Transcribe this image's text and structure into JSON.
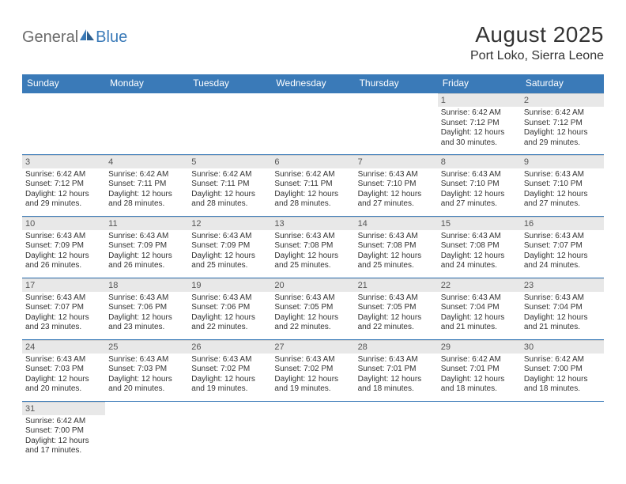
{
  "logo": {
    "text1": "General",
    "text2": "Blue",
    "color_gray": "#6b6b6b",
    "color_blue": "#3a7ab8"
  },
  "title": "August 2025",
  "location": "Port Loko, Sierra Leone",
  "header_bg": "#3a7ab8",
  "header_text_color": "#ffffff",
  "daynum_bg": "#e8e8e8",
  "row_border_color": "#3a7ab8",
  "text_color": "#333333",
  "day_headers": [
    "Sunday",
    "Monday",
    "Tuesday",
    "Wednesday",
    "Thursday",
    "Friday",
    "Saturday"
  ],
  "weeks": [
    [
      null,
      null,
      null,
      null,
      null,
      {
        "num": "1",
        "sunrise": "6:42 AM",
        "sunset": "7:12 PM",
        "daylight": "12 hours and 30 minutes."
      },
      {
        "num": "2",
        "sunrise": "6:42 AM",
        "sunset": "7:12 PM",
        "daylight": "12 hours and 29 minutes."
      }
    ],
    [
      {
        "num": "3",
        "sunrise": "6:42 AM",
        "sunset": "7:12 PM",
        "daylight": "12 hours and 29 minutes."
      },
      {
        "num": "4",
        "sunrise": "6:42 AM",
        "sunset": "7:11 PM",
        "daylight": "12 hours and 28 minutes."
      },
      {
        "num": "5",
        "sunrise": "6:42 AM",
        "sunset": "7:11 PM",
        "daylight": "12 hours and 28 minutes."
      },
      {
        "num": "6",
        "sunrise": "6:42 AM",
        "sunset": "7:11 PM",
        "daylight": "12 hours and 28 minutes."
      },
      {
        "num": "7",
        "sunrise": "6:43 AM",
        "sunset": "7:10 PM",
        "daylight": "12 hours and 27 minutes."
      },
      {
        "num": "8",
        "sunrise": "6:43 AM",
        "sunset": "7:10 PM",
        "daylight": "12 hours and 27 minutes."
      },
      {
        "num": "9",
        "sunrise": "6:43 AM",
        "sunset": "7:10 PM",
        "daylight": "12 hours and 27 minutes."
      }
    ],
    [
      {
        "num": "10",
        "sunrise": "6:43 AM",
        "sunset": "7:09 PM",
        "daylight": "12 hours and 26 minutes."
      },
      {
        "num": "11",
        "sunrise": "6:43 AM",
        "sunset": "7:09 PM",
        "daylight": "12 hours and 26 minutes."
      },
      {
        "num": "12",
        "sunrise": "6:43 AM",
        "sunset": "7:09 PM",
        "daylight": "12 hours and 25 minutes."
      },
      {
        "num": "13",
        "sunrise": "6:43 AM",
        "sunset": "7:08 PM",
        "daylight": "12 hours and 25 minutes."
      },
      {
        "num": "14",
        "sunrise": "6:43 AM",
        "sunset": "7:08 PM",
        "daylight": "12 hours and 25 minutes."
      },
      {
        "num": "15",
        "sunrise": "6:43 AM",
        "sunset": "7:08 PM",
        "daylight": "12 hours and 24 minutes."
      },
      {
        "num": "16",
        "sunrise": "6:43 AM",
        "sunset": "7:07 PM",
        "daylight": "12 hours and 24 minutes."
      }
    ],
    [
      {
        "num": "17",
        "sunrise": "6:43 AM",
        "sunset": "7:07 PM",
        "daylight": "12 hours and 23 minutes."
      },
      {
        "num": "18",
        "sunrise": "6:43 AM",
        "sunset": "7:06 PM",
        "daylight": "12 hours and 23 minutes."
      },
      {
        "num": "19",
        "sunrise": "6:43 AM",
        "sunset": "7:06 PM",
        "daylight": "12 hours and 22 minutes."
      },
      {
        "num": "20",
        "sunrise": "6:43 AM",
        "sunset": "7:05 PM",
        "daylight": "12 hours and 22 minutes."
      },
      {
        "num": "21",
        "sunrise": "6:43 AM",
        "sunset": "7:05 PM",
        "daylight": "12 hours and 22 minutes."
      },
      {
        "num": "22",
        "sunrise": "6:43 AM",
        "sunset": "7:04 PM",
        "daylight": "12 hours and 21 minutes."
      },
      {
        "num": "23",
        "sunrise": "6:43 AM",
        "sunset": "7:04 PM",
        "daylight": "12 hours and 21 minutes."
      }
    ],
    [
      {
        "num": "24",
        "sunrise": "6:43 AM",
        "sunset": "7:03 PM",
        "daylight": "12 hours and 20 minutes."
      },
      {
        "num": "25",
        "sunrise": "6:43 AM",
        "sunset": "7:03 PM",
        "daylight": "12 hours and 20 minutes."
      },
      {
        "num": "26",
        "sunrise": "6:43 AM",
        "sunset": "7:02 PM",
        "daylight": "12 hours and 19 minutes."
      },
      {
        "num": "27",
        "sunrise": "6:43 AM",
        "sunset": "7:02 PM",
        "daylight": "12 hours and 19 minutes."
      },
      {
        "num": "28",
        "sunrise": "6:43 AM",
        "sunset": "7:01 PM",
        "daylight": "12 hours and 18 minutes."
      },
      {
        "num": "29",
        "sunrise": "6:42 AM",
        "sunset": "7:01 PM",
        "daylight": "12 hours and 18 minutes."
      },
      {
        "num": "30",
        "sunrise": "6:42 AM",
        "sunset": "7:00 PM",
        "daylight": "12 hours and 18 minutes."
      }
    ],
    [
      {
        "num": "31",
        "sunrise": "6:42 AM",
        "sunset": "7:00 PM",
        "daylight": "12 hours and 17 minutes."
      },
      null,
      null,
      null,
      null,
      null,
      null
    ]
  ],
  "labels": {
    "sunrise": "Sunrise:",
    "sunset": "Sunset:",
    "daylight": "Daylight:"
  }
}
